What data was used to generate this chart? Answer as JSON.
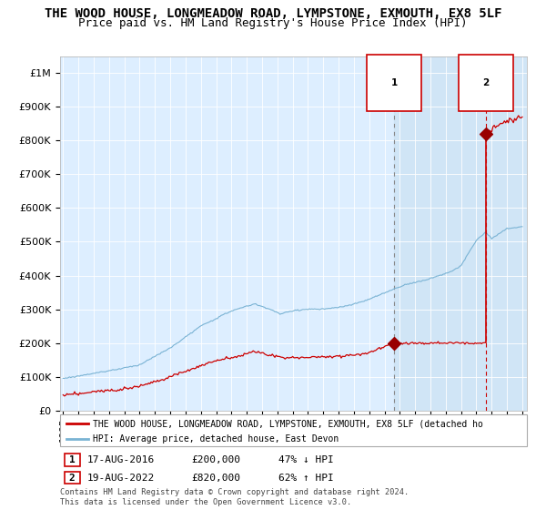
{
  "title": "THE WOOD HOUSE, LONGMEADOW ROAD, LYMPSTONE, EXMOUTH, EX8 5LF",
  "subtitle": "Price paid vs. HM Land Registry's House Price Index (HPI)",
  "legend_line1": "THE WOOD HOUSE, LONGMEADOW ROAD, LYMPSTONE, EXMOUTH, EX8 5LF (detached ho",
  "legend_line2": "HPI: Average price, detached house, East Devon",
  "annotation1_date": "17-AUG-2016",
  "annotation1_price": "£200,000",
  "annotation1_pct": "47% ↓ HPI",
  "annotation2_date": "19-AUG-2022",
  "annotation2_price": "£820,000",
  "annotation2_pct": "62% ↑ HPI",
  "footer": "Contains HM Land Registry data © Crown copyright and database right 2024.\nThis data is licensed under the Open Government Licence v3.0.",
  "hpi_color": "#7ab3d4",
  "price_color": "#cc0000",
  "dot_color": "#990000",
  "vline1_color": "#888888",
  "vline2_color": "#cc0000",
  "bg_color": "#ddeeff",
  "shade_color": "#c8dff0",
  "ylim_max": 1050000,
  "yticks": [
    0,
    100000,
    200000,
    300000,
    400000,
    500000,
    600000,
    700000,
    800000,
    900000,
    1000000
  ],
  "year_start": 1995,
  "year_end": 2025,
  "sale1_year": 2016.625,
  "sale2_year": 2022.625,
  "sale1_price": 200000,
  "sale2_price": 820000,
  "title_fontsize": 10,
  "subtitle_fontsize": 9
}
